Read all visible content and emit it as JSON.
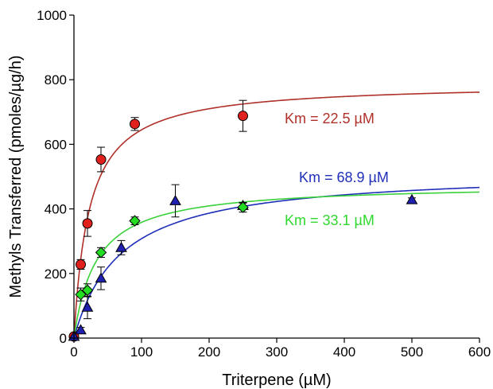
{
  "chart_data": {
    "type": "scatter",
    "title": "",
    "xlabel": "Triterpene (µM)",
    "ylabel": "Methyls Transferred (pmoles/µg/h)",
    "xlim": [
      0,
      600
    ],
    "ylim": [
      0,
      1000
    ],
    "xticks": [
      0,
      100,
      200,
      300,
      400,
      500,
      600
    ],
    "yticks": [
      0,
      200,
      400,
      600,
      800,
      1000
    ],
    "grid": false,
    "legend": "none",
    "series": [
      {
        "marker": "circle",
        "color": "#e0201c",
        "line_color": "#b0302a",
        "fit": "michaelis-menten",
        "vmax": 790,
        "km": 22.5,
        "annotation": "Km = 22.5 µM",
        "points": [
          {
            "x": 0,
            "y": 5,
            "err": 0
          },
          {
            "x": 10,
            "y": 228,
            "err": 15
          },
          {
            "x": 20,
            "y": 355,
            "err": 40
          },
          {
            "x": 40,
            "y": 553,
            "err": 38
          },
          {
            "x": 90,
            "y": 663,
            "err": 20
          },
          {
            "x": 250,
            "y": 688,
            "err": 48
          }
        ]
      },
      {
        "marker": "triangle",
        "color": "#1f1fb0",
        "line_color": "#1f2fb8",
        "fit": "michaelis-menten",
        "vmax": 520,
        "km": 68.9,
        "annotation": "Km = 68.9 µM",
        "points": [
          {
            "x": 0,
            "y": 5,
            "err": 0
          },
          {
            "x": 10,
            "y": 25,
            "err": 8
          },
          {
            "x": 20,
            "y": 95,
            "err": 35
          },
          {
            "x": 40,
            "y": 185,
            "err": 35
          },
          {
            "x": 70,
            "y": 280,
            "err": 22
          },
          {
            "x": 150,
            "y": 425,
            "err": 50
          },
          {
            "x": 250,
            "y": 410,
            "err": 8
          },
          {
            "x": 500,
            "y": 428,
            "err": 6
          }
        ]
      },
      {
        "marker": "diamond",
        "color": "#22dd22",
        "line_color": "#3ad13a",
        "fit": "michaelis-menten",
        "vmax": 477,
        "km": 33.1,
        "annotation": "Km = 33.1 µM",
        "points": [
          {
            "x": 10,
            "y": 135,
            "err": 20
          },
          {
            "x": 20,
            "y": 148,
            "err": 20
          },
          {
            "x": 40,
            "y": 265,
            "err": 15
          },
          {
            "x": 90,
            "y": 363,
            "err": 12
          },
          {
            "x": 250,
            "y": 405,
            "err": 15
          }
        ]
      }
    ]
  }
}
